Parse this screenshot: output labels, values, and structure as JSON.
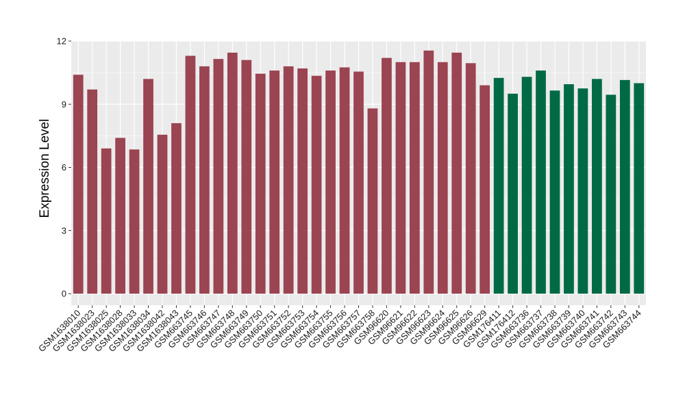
{
  "chart_data": {
    "type": "bar",
    "title": "",
    "xlabel": "",
    "ylabel": "Expression Level",
    "ylim": [
      0,
      12
    ],
    "yticks": [
      0,
      3,
      6,
      9,
      12
    ],
    "grid": true,
    "legend": "none",
    "colors": {
      "group1": "#9b4452",
      "group2": "#006a45",
      "panel": "#ebebeb",
      "gridline": "#ffffff"
    },
    "categories": [
      "GSM1638010",
      "GSM1638023",
      "GSM1638025",
      "GSM1638028",
      "GSM1638033",
      "GSM1638034",
      "GSM1638042",
      "GSM1638043",
      "GSM663745",
      "GSM663746",
      "GSM663747",
      "GSM663748",
      "GSM663749",
      "GSM663750",
      "GSM663751",
      "GSM663752",
      "GSM663753",
      "GSM663754",
      "GSM663755",
      "GSM663756",
      "GSM663757",
      "GSM663758",
      "GSM96620",
      "GSM96621",
      "GSM96622",
      "GSM96623",
      "GSM96624",
      "GSM96625",
      "GSM96626",
      "GSM96629",
      "GSM176411",
      "GSM176412",
      "GSM663736",
      "GSM663737",
      "GSM663738",
      "GSM663739",
      "GSM663740",
      "GSM663741",
      "GSM663742",
      "GSM663743",
      "GSM663744"
    ],
    "values": [
      10.4,
      9.7,
      6.9,
      7.4,
      6.85,
      10.2,
      7.55,
      8.1,
      11.3,
      10.8,
      11.15,
      11.45,
      11.1,
      10.45,
      10.6,
      10.8,
      10.7,
      10.35,
      10.6,
      10.75,
      10.55,
      8.8,
      11.2,
      11.0,
      11.0,
      11.55,
      11.0,
      11.45,
      10.95,
      9.9,
      10.25,
      9.5,
      10.3,
      10.6,
      9.65,
      9.95,
      9.75,
      10.2,
      9.45,
      10.15,
      10.0
    ],
    "groups": [
      1,
      1,
      1,
      1,
      1,
      1,
      1,
      1,
      1,
      1,
      1,
      1,
      1,
      1,
      1,
      1,
      1,
      1,
      1,
      1,
      1,
      1,
      1,
      1,
      1,
      1,
      1,
      1,
      1,
      1,
      2,
      2,
      2,
      2,
      2,
      2,
      2,
      2,
      2,
      2,
      2
    ]
  }
}
